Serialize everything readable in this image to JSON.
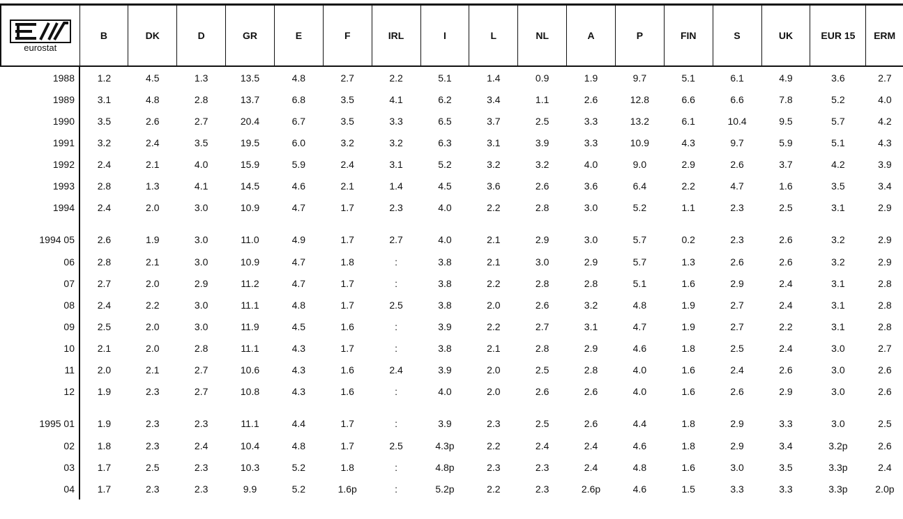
{
  "header": {
    "logo": "eurostat",
    "columns": [
      "B",
      "DK",
      "D",
      "GR",
      "E",
      "F",
      "IRL",
      "I",
      "L",
      "NL",
      "A",
      "P",
      "FIN",
      "S",
      "UK",
      "EUR 15",
      "ERM"
    ]
  },
  "table": {
    "groups": [
      {
        "rows": [
          {
            "label": "1988",
            "cells": [
              "1.2",
              "4.5",
              "1.3",
              "13.5",
              "4.8",
              "2.7",
              "2.2",
              "5.1",
              "1.4",
              "0.9",
              "1.9",
              "9.7",
              "5.1",
              "6.1",
              "4.9",
              "3.6",
              "2.7"
            ]
          },
          {
            "label": "1989",
            "cells": [
              "3.1",
              "4.8",
              "2.8",
              "13.7",
              "6.8",
              "3.5",
              "4.1",
              "6.2",
              "3.4",
              "1.1",
              "2.6",
              "12.8",
              "6.6",
              "6.6",
              "7.8",
              "5.2",
              "4.0"
            ]
          },
          {
            "label": "1990",
            "cells": [
              "3.5",
              "2.6",
              "2.7",
              "20.4",
              "6.7",
              "3.5",
              "3.3",
              "6.5",
              "3.7",
              "2.5",
              "3.3",
              "13.2",
              "6.1",
              "10.4",
              "9.5",
              "5.7",
              "4.2"
            ]
          },
          {
            "label": "1991",
            "cells": [
              "3.2",
              "2.4",
              "3.5",
              "19.5",
              "6.0",
              "3.2",
              "3.2",
              "6.3",
              "3.1",
              "3.9",
              "3.3",
              "10.9",
              "4.3",
              "9.7",
              "5.9",
              "5.1",
              "4.3"
            ]
          },
          {
            "label": "1992",
            "cells": [
              "2.4",
              "2.1",
              "4.0",
              "15.9",
              "5.9",
              "2.4",
              "3.1",
              "5.2",
              "3.2",
              "3.2",
              "4.0",
              "9.0",
              "2.9",
              "2.6",
              "3.7",
              "4.2",
              "3.9"
            ]
          },
          {
            "label": "1993",
            "cells": [
              "2.8",
              "1.3",
              "4.1",
              "14.5",
              "4.6",
              "2.1",
              "1.4",
              "4.5",
              "3.6",
              "2.6",
              "3.6",
              "6.4",
              "2.2",
              "4.7",
              "1.6",
              "3.5",
              "3.4"
            ]
          },
          {
            "label": "1994",
            "cells": [
              "2.4",
              "2.0",
              "3.0",
              "10.9",
              "4.7",
              "1.7",
              "2.3",
              "4.0",
              "2.2",
              "2.8",
              "3.0",
              "5.2",
              "1.1",
              "2.3",
              "2.5",
              "3.1",
              "2.9"
            ]
          }
        ]
      },
      {
        "rows": [
          {
            "label": "1994 05",
            "cells": [
              "2.6",
              "1.9",
              "3.0",
              "11.0",
              "4.9",
              "1.7",
              "2.7",
              "4.0",
              "2.1",
              "2.9",
              "3.0",
              "5.7",
              "0.2",
              "2.3",
              "2.6",
              "3.2",
              "2.9"
            ]
          },
          {
            "label": "06",
            "cells": [
              "2.8",
              "2.1",
              "3.0",
              "10.9",
              "4.7",
              "1.8",
              ":",
              "3.8",
              "2.1",
              "3.0",
              "2.9",
              "5.7",
              "1.3",
              "2.6",
              "2.6",
              "3.2",
              "2.9"
            ]
          },
          {
            "label": "07",
            "cells": [
              "2.7",
              "2.0",
              "2.9",
              "11.2",
              "4.7",
              "1.7",
              ":",
              "3.8",
              "2.2",
              "2.8",
              "2.8",
              "5.1",
              "1.6",
              "2.9",
              "2.4",
              "3.1",
              "2.8"
            ]
          },
          {
            "label": "08",
            "cells": [
              "2.4",
              "2.2",
              "3.0",
              "11.1",
              "4.8",
              "1.7",
              "2.5",
              "3.8",
              "2.0",
              "2.6",
              "3.2",
              "4.8",
              "1.9",
              "2.7",
              "2.4",
              "3.1",
              "2.8"
            ]
          },
          {
            "label": "09",
            "cells": [
              "2.5",
              "2.0",
              "3.0",
              "11.9",
              "4.5",
              "1.6",
              ":",
              "3.9",
              "2.2",
              "2.7",
              "3.1",
              "4.7",
              "1.9",
              "2.7",
              "2.2",
              "3.1",
              "2.8"
            ]
          },
          {
            "label": "10",
            "cells": [
              "2.1",
              "2.0",
              "2.8",
              "11.1",
              "4.3",
              "1.7",
              ":",
              "3.8",
              "2.1",
              "2.8",
              "2.9",
              "4.6",
              "1.8",
              "2.5",
              "2.4",
              "3.0",
              "2.7"
            ]
          },
          {
            "label": "11",
            "cells": [
              "2.0",
              "2.1",
              "2.7",
              "10.6",
              "4.3",
              "1.6",
              "2.4",
              "3.9",
              "2.0",
              "2.5",
              "2.8",
              "4.0",
              "1.6",
              "2.4",
              "2.6",
              "3.0",
              "2.6"
            ]
          },
          {
            "label": "12",
            "cells": [
              "1.9",
              "2.3",
              "2.7",
              "10.8",
              "4.3",
              "1.6",
              ":",
              "4.0",
              "2.0",
              "2.6",
              "2.6",
              "4.0",
              "1.6",
              "2.6",
              "2.9",
              "3.0",
              "2.6"
            ]
          }
        ]
      },
      {
        "rows": [
          {
            "label": "1995 01",
            "cells": [
              "1.9",
              "2.3",
              "2.3",
              "11.1",
              "4.4",
              "1.7",
              ":",
              "3.9",
              "2.3",
              "2.5",
              "2.6",
              "4.4",
              "1.8",
              "2.9",
              "3.3",
              "3.0",
              "2.5"
            ]
          },
          {
            "label": "02",
            "cells": [
              "1.8",
              "2.3",
              "2.4",
              "10.4",
              "4.8",
              "1.7",
              "2.5",
              "4.3p",
              "2.2",
              "2.4",
              "2.4",
              "4.6",
              "1.8",
              "2.9",
              "3.4",
              "3.2p",
              "2.6"
            ]
          },
          {
            "label": "03",
            "cells": [
              "1.7",
              "2.5",
              "2.3",
              "10.3",
              "5.2",
              "1.8",
              ":",
              "4.8p",
              "2.3",
              "2.3",
              "2.4",
              "4.8",
              "1.6",
              "3.0",
              "3.5",
              "3.3p",
              "2.4"
            ]
          },
          {
            "label": "04",
            "cells": [
              "1.7",
              "2.3",
              "2.3",
              "9.9",
              "5.2",
              "1.6p",
              ":",
              "5.2p",
              "2.2",
              "2.3",
              "2.6p",
              "4.6",
              "1.5",
              "3.3",
              "3.3",
              "3.3p",
              "2.0p"
            ]
          }
        ]
      }
    ]
  }
}
